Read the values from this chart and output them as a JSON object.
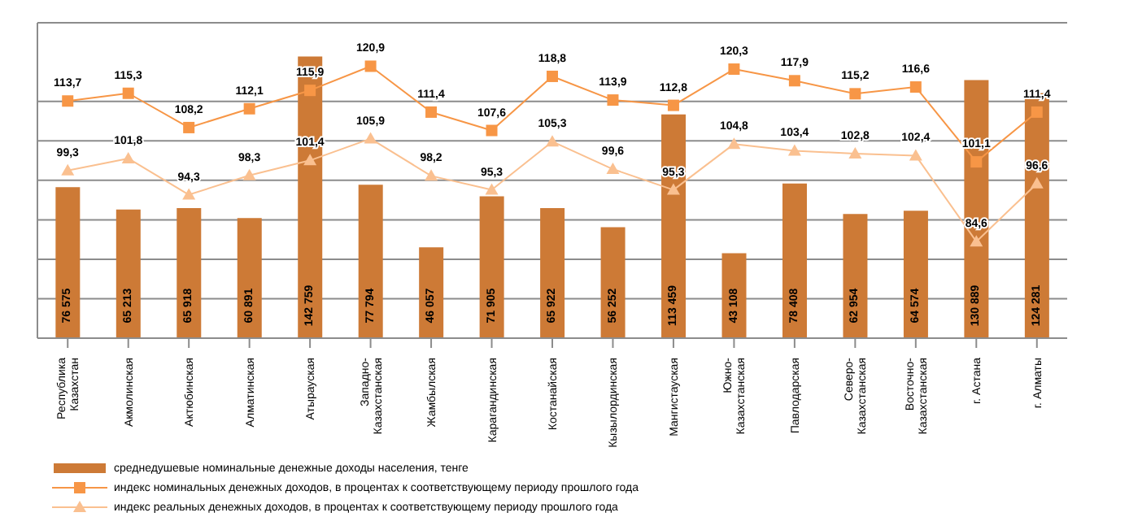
{
  "chart_data": {
    "type": "bar",
    "categories": [
      "Республика Казахстан",
      "Акмолинская",
      "Актюбинская",
      "Алматинская",
      "Атырауская",
      "Западно-Казахстанская",
      "Жамбылская",
      "Карагандинская",
      "Костанайская",
      "Кызылординская",
      "Мангистауская",
      "Южно-Казахстанская",
      "Павлодарская",
      "Северо-Казахстанская",
      "Восточно-Казахстанская",
      "г. Астана",
      "г. Алматы"
    ],
    "series": [
      {
        "name": "среднедушевые номинальные денежные доходы населения, тенге",
        "color": "#cd7a36",
        "values": [
          76575,
          65213,
          65918,
          60891,
          142759,
          77794,
          46057,
          71905,
          65922,
          56252,
          113459,
          43108,
          78408,
          62954,
          64574,
          130889,
          124281
        ]
      },
      {
        "name": "индекс номинальных денежных доходов, в процентах к соответствующему периоду прошлого года",
        "type": "line",
        "axis": "y2",
        "marker": "square",
        "color": "#f79646",
        "values": [
          113.7,
          115.3,
          108.2,
          112.1,
          115.9,
          120.9,
          111.4,
          107.6,
          118.8,
          113.9,
          112.8,
          120.3,
          117.9,
          115.2,
          116.6,
          101.1,
          111.4
        ],
        "value_labels": [
          "113,7",
          "115,3",
          "108,2",
          "112,1",
          "115,9",
          "120,9",
          "111,4",
          "107,6",
          "118,8",
          "113,9",
          "112,8",
          "120,3",
          "117,9",
          "115,2",
          "116,6",
          "101,1",
          "111,4"
        ]
      },
      {
        "name": "индекс реальных денежных доходов, в процентах к соответствующему периоду прошлого года",
        "type": "line",
        "axis": "y2",
        "marker": "triangle",
        "color": "#fac090",
        "values": [
          99.3,
          101.8,
          94.3,
          98.3,
          101.4,
          105.9,
          98.2,
          95.3,
          105.3,
          99.6,
          95.3,
          104.8,
          103.4,
          102.8,
          102.4,
          84.6,
          96.6
        ],
        "value_labels": [
          "99,3",
          "101,8",
          "94,3",
          "98,3",
          "101,4",
          "105,9",
          "98,2",
          "95,3",
          "105,3",
          "99,6",
          "95,3",
          "104,8",
          "103,4",
          "102,8",
          "102,4",
          "84,6",
          "96,6"
        ]
      }
    ],
    "tick_labels": "x",
    "grid": "y",
    "legend": "bottom",
    "data_labels": true
  }
}
